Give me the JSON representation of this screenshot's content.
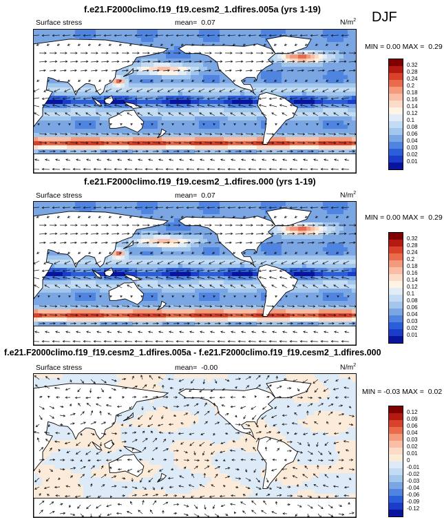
{
  "season": "DJF",
  "panels": [
    {
      "title": "f.e21.F2000climo.f19_f19.cesm2_1.dfires.005a (yrs 1-19)",
      "variable": "Surface stress",
      "mean_label": "mean=",
      "mean": "0.07",
      "units_base": "N/m",
      "units_exp": "2",
      "min_label": "MIN =",
      "min": "0.00",
      "max_label": "MAX =",
      "max": "0.29",
      "colorbar": {
        "levels": [
          "0.32",
          "0.28",
          "0.24",
          "0.2",
          "0.18",
          "0.16",
          "0.14",
          "0.12",
          "0.1",
          "0.08",
          "0.06",
          "0.04",
          "0.03",
          "0.02",
          "0.01"
        ],
        "colors": [
          "#7f0000",
          "#b51a12",
          "#d8412a",
          "#ea6b4c",
          "#f49a7c",
          "#f9bda6",
          "#fcdcc9",
          "#fff3e4",
          "#e1ecf8",
          "#c3dcf3",
          "#a2c6ec",
          "#7aa6e4",
          "#4f84e0",
          "#2a5fd9",
          "#1a3cc9",
          "#0a139b"
        ]
      }
    },
    {
      "title": "f.e21.F2000climo.f19_f19.cesm2_1.dfires.000 (yrs 1-19)",
      "variable": "Surface stress",
      "mean_label": "mean=",
      "mean": "0.07",
      "units_base": "N/m",
      "units_exp": "2",
      "min_label": "MIN =",
      "min": "0.00",
      "max_label": "MAX =",
      "max": "0.29",
      "colorbar": {
        "levels": [
          "0.32",
          "0.28",
          "0.24",
          "0.2",
          "0.18",
          "0.16",
          "0.14",
          "0.12",
          "0.1",
          "0.08",
          "0.06",
          "0.04",
          "0.03",
          "0.02",
          "0.01"
        ],
        "colors": [
          "#7f0000",
          "#b51a12",
          "#d8412a",
          "#ea6b4c",
          "#f49a7c",
          "#f9bda6",
          "#fcdcc9",
          "#fff3e4",
          "#e1ecf8",
          "#c3dcf3",
          "#a2c6ec",
          "#7aa6e4",
          "#4f84e0",
          "#2a5fd9",
          "#1a3cc9",
          "#0a139b"
        ]
      }
    },
    {
      "title": "f.e21.F2000climo.f19_f19.cesm2_1.dfires.005a - f.e21.F2000climo.f19_f19.cesm2_1.dfires.000",
      "variable": "Surface stress",
      "mean_label": "mean=",
      "mean": "-0.00",
      "units_base": "N/m",
      "units_exp": "2",
      "min_label": "MIN =",
      "min": "-0.03",
      "max_label": "MAX =",
      "max": "0.02",
      "colorbar": {
        "levels": [
          "0.12",
          "0.09",
          "0.06",
          "0.04",
          "0.03",
          "0.02",
          "0.01",
          "0",
          "-0.01",
          "-0.02",
          "-0.03",
          "-0.04",
          "-0.06",
          "-0.09",
          "-0.12"
        ],
        "colors": [
          "#7f0000",
          "#b51a12",
          "#d8412a",
          "#ea6b4c",
          "#f49a7c",
          "#f9bda6",
          "#fcdcc9",
          "#fdebd9",
          "#ddeaf8",
          "#c3dcf3",
          "#a2c6ec",
          "#7aa6e4",
          "#4f84e0",
          "#2a5fd9",
          "#1a3cc9",
          "#0a139b"
        ]
      }
    }
  ],
  "chart_data": [
    {
      "type": "heatmap",
      "title": "f.e21.F2000climo.f19_f19.cesm2_1.dfires.005a (yrs 1-19)",
      "field": "Surface stress (N/m^2) with wind-stress vectors",
      "season": "DJF",
      "mean": 0.07,
      "min": 0.0,
      "max": 0.29,
      "contour_levels": [
        0.01,
        0.02,
        0.03,
        0.04,
        0.06,
        0.08,
        0.1,
        0.12,
        0.14,
        0.16,
        0.18,
        0.2,
        0.24,
        0.28,
        0.32
      ]
    },
    {
      "type": "heatmap",
      "title": "f.e21.F2000climo.f19_f19.cesm2_1.dfires.000 (yrs 1-19)",
      "field": "Surface stress (N/m^2) with wind-stress vectors",
      "season": "DJF",
      "mean": 0.07,
      "min": 0.0,
      "max": 0.29,
      "contour_levels": [
        0.01,
        0.02,
        0.03,
        0.04,
        0.06,
        0.08,
        0.1,
        0.12,
        0.14,
        0.16,
        0.18,
        0.2,
        0.24,
        0.28,
        0.32
      ]
    },
    {
      "type": "heatmap",
      "title": "f.e21.F2000climo.f19_f19.cesm2_1.dfires.005a - f.e21.F2000climo.f19_f19.cesm2_1.dfires.000",
      "field": "Surface stress difference (N/m^2) with vector differences",
      "season": "DJF",
      "mean": -0.0,
      "min": -0.03,
      "max": 0.02,
      "contour_levels": [
        -0.12,
        -0.09,
        -0.06,
        -0.04,
        -0.03,
        -0.02,
        -0.01,
        0,
        0.01,
        0.02,
        0.03,
        0.04,
        0.06,
        0.09,
        0.12
      ]
    }
  ]
}
